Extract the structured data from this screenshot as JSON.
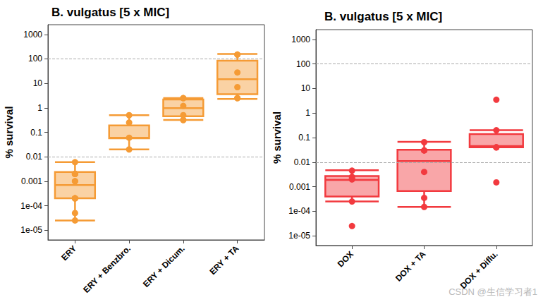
{
  "chart_data": [
    {
      "type": "boxplot",
      "title": "B. vulgatus [5 x MIC]",
      "y_label": "% survival",
      "categories": [
        "ERY",
        "ERY + Benzbro.",
        "ERY + Dicum.",
        "ERY + TA"
      ],
      "box": [
        [
          2.5e-05,
          0.0002,
          0.0007,
          0.0024,
          0.006
        ],
        [
          0.02,
          0.057,
          0.06,
          0.19,
          0.5
        ],
        [
          0.32,
          0.45,
          0.98,
          2.2,
          2.5
        ],
        [
          2.3,
          3.6,
          14.7,
          85,
          158
        ]
      ],
      "points": [
        [
          0.006,
          0.002,
          0.002,
          0.002,
          0.002,
          0.002,
          0.001,
          0.001,
          0.0002,
          0.0002,
          0.0002,
          0.0002,
          5e-05,
          2.5e-05
        ],
        [
          0.5,
          0.25,
          0.06,
          0.02
        ],
        [
          2.5,
          2.5,
          1.2,
          0.5,
          0.32,
          0.32
        ],
        [
          150,
          150,
          28,
          7,
          2.5,
          2.5
        ]
      ],
      "reference_lines": [
        0.01,
        100
      ],
      "color": "#f59b35",
      "log": "y",
      "grid": false,
      "ylim": [
        4e-06,
        2500
      ],
      "yticks": [
        {
          "value": 1e-05,
          "label": "1e-05"
        },
        {
          "value": 0.0001,
          "label": "1e-04"
        },
        0.001,
        0.01,
        0.1,
        1,
        10,
        100,
        1000
      ]
    },
    {
      "type": "boxplot",
      "title": "B. vulgatus [5 x MIC]",
      "y_label": "% survival",
      "categories": [
        "DOX",
        "DOX + TA",
        "DOX + Diflu."
      ],
      "box": [
        [
          0.00025,
          0.0004,
          0.0019,
          0.0027,
          0.0047
        ],
        [
          0.00015,
          0.00067,
          0.011,
          0.032,
          0.067
        ],
        [
          0.04,
          0.04,
          0.045,
          0.14,
          0.2
        ]
      ],
      "points": [
        [
          0.0045,
          0.0025,
          0.002,
          0.002,
          0.00025,
          2.5e-05
        ],
        [
          0.065,
          0.03,
          0.03,
          0.004,
          0.00035,
          0.00015
        ],
        [
          3.5,
          0.2,
          0.04,
          0.04,
          0.04,
          0.0015
        ]
      ],
      "reference_lines": [
        0.01,
        100
      ],
      "color": "#f23a3f",
      "log": "y",
      "grid": false,
      "ylim": [
        4e-06,
        2500
      ],
      "yticks": [
        {
          "value": 1e-05,
          "label": "1e-05"
        },
        {
          "value": 0.0001,
          "label": "1e-04"
        },
        0.001,
        0.01,
        0.1,
        1,
        10,
        100,
        1000
      ]
    }
  ],
  "watermark": "CSDN @生信学习者1"
}
